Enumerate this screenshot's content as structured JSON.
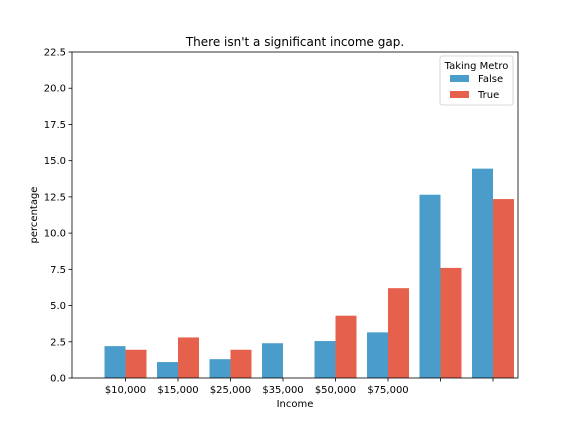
{
  "chart_data": {
    "type": "bar",
    "title": "There isn't a significant income gap.",
    "xlabel": "Income",
    "ylabel": "percentage",
    "ylim": [
      0,
      22.5
    ],
    "yticks": [
      "0.0",
      "2.5",
      "5.0",
      "7.5",
      "10.0",
      "12.5",
      "15.0",
      "17.5",
      "20.0",
      "22.5"
    ],
    "categories": [
      "$10,000",
      "$15,000",
      "$25,000",
      "$35,000",
      "$50,000",
      "$75,000",
      "",
      ""
    ],
    "legend": {
      "title": "Taking Metro",
      "placement": "top-right"
    },
    "grid": false,
    "series": [
      {
        "name": "False",
        "color": "#4a9dcb",
        "values": [
          2.2,
          1.1,
          1.3,
          2.4,
          2.55,
          3.15,
          12.65,
          14.45
        ]
      },
      {
        "name": "True",
        "color": "#e5614c",
        "values": [
          1.95,
          2.8,
          1.95,
          0,
          4.3,
          6.2,
          7.6,
          12.35
        ]
      }
    ]
  }
}
